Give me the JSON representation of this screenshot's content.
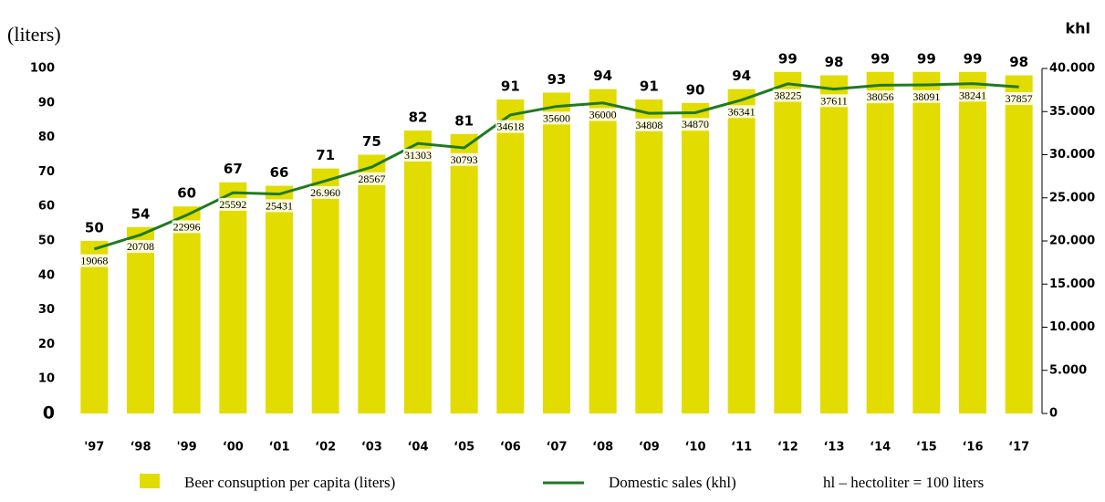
{
  "chart_data": {
    "type": "bar-line",
    "y_label": "(liters)",
    "y2_label": "khl",
    "note": "hl – hectoliter = 100 liters",
    "categories": [
      "'97",
      "‘98",
      "'99",
      "‘00",
      "‘01",
      "‘02",
      "‘03",
      "‘04",
      "‘05",
      "‘06",
      "‘07",
      "‘08",
      "‘09",
      "‘10",
      "‘11",
      "‘12",
      "‘13",
      "‘14",
      "‘15",
      "‘16",
      "‘17"
    ],
    "series": [
      {
        "name": "Beer consuption per capita (liters)",
        "type": "bar",
        "color": "#e2dc00",
        "values": [
          50,
          54,
          60,
          67,
          66,
          71,
          75,
          82,
          81,
          91,
          93,
          94,
          91,
          90,
          94,
          99,
          98,
          99,
          99,
          99,
          98
        ]
      },
      {
        "name": "Domestic sales (khl)",
        "type": "line",
        "axis": "y2",
        "color": "#1f7a1f",
        "values": [
          19068,
          20708,
          22996,
          25592,
          25431,
          26960,
          28567,
          31303,
          30793,
          34618,
          35600,
          36000,
          34808,
          34870,
          36341,
          38225,
          37611,
          38056,
          38091,
          38241,
          37857
        ],
        "value_labels": [
          "19068",
          "20708",
          "22996",
          "25592",
          "25431",
          "26.960",
          "28567",
          "31303",
          "30793",
          "34618",
          "35600",
          "36000",
          "34808",
          "34870",
          "36341",
          "38225",
          "37611",
          "38056",
          "38091",
          "38241",
          "37857"
        ]
      }
    ],
    "ylim": [
      0,
      100
    ],
    "yticks": [
      0,
      10,
      20,
      30,
      40,
      50,
      60,
      70,
      80,
      90,
      100
    ],
    "y2lim": [
      0,
      40000
    ],
    "y2ticks": [
      0,
      {
        "value": 5000,
        "label": "5.000"
      },
      {
        "value": 10000,
        "label": "10.000"
      },
      {
        "value": 15000,
        "label": "15.000"
      },
      {
        "value": 20000,
        "label": "20.000"
      },
      {
        "value": 25000,
        "label": "25.000"
      },
      {
        "value": 30000,
        "label": "30.000"
      },
      {
        "value": 35000,
        "label": "35.000"
      },
      {
        "value": 40000,
        "label": "40.000"
      }
    ]
  }
}
